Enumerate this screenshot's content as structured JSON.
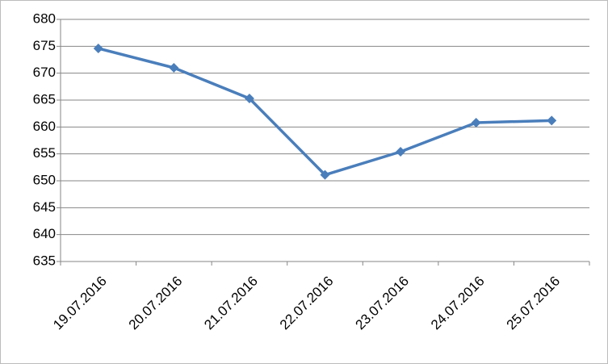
{
  "chart_data": {
    "type": "line",
    "categories": [
      "19.07.2016",
      "20.07.2016",
      "21.07.2016",
      "22.07.2016",
      "23.07.2016",
      "24.07.2016",
      "25.07.2016"
    ],
    "series": [
      {
        "color": "#4a7ebb",
        "values": [
          674.6,
          671.0,
          665.3,
          651.1,
          655.4,
          660.8,
          661.2
        ]
      }
    ],
    "ylim": [
      635,
      680
    ],
    "yticks": [
      635,
      640,
      645,
      650,
      655,
      660,
      665,
      670,
      675,
      680
    ],
    "grid": true
  }
}
